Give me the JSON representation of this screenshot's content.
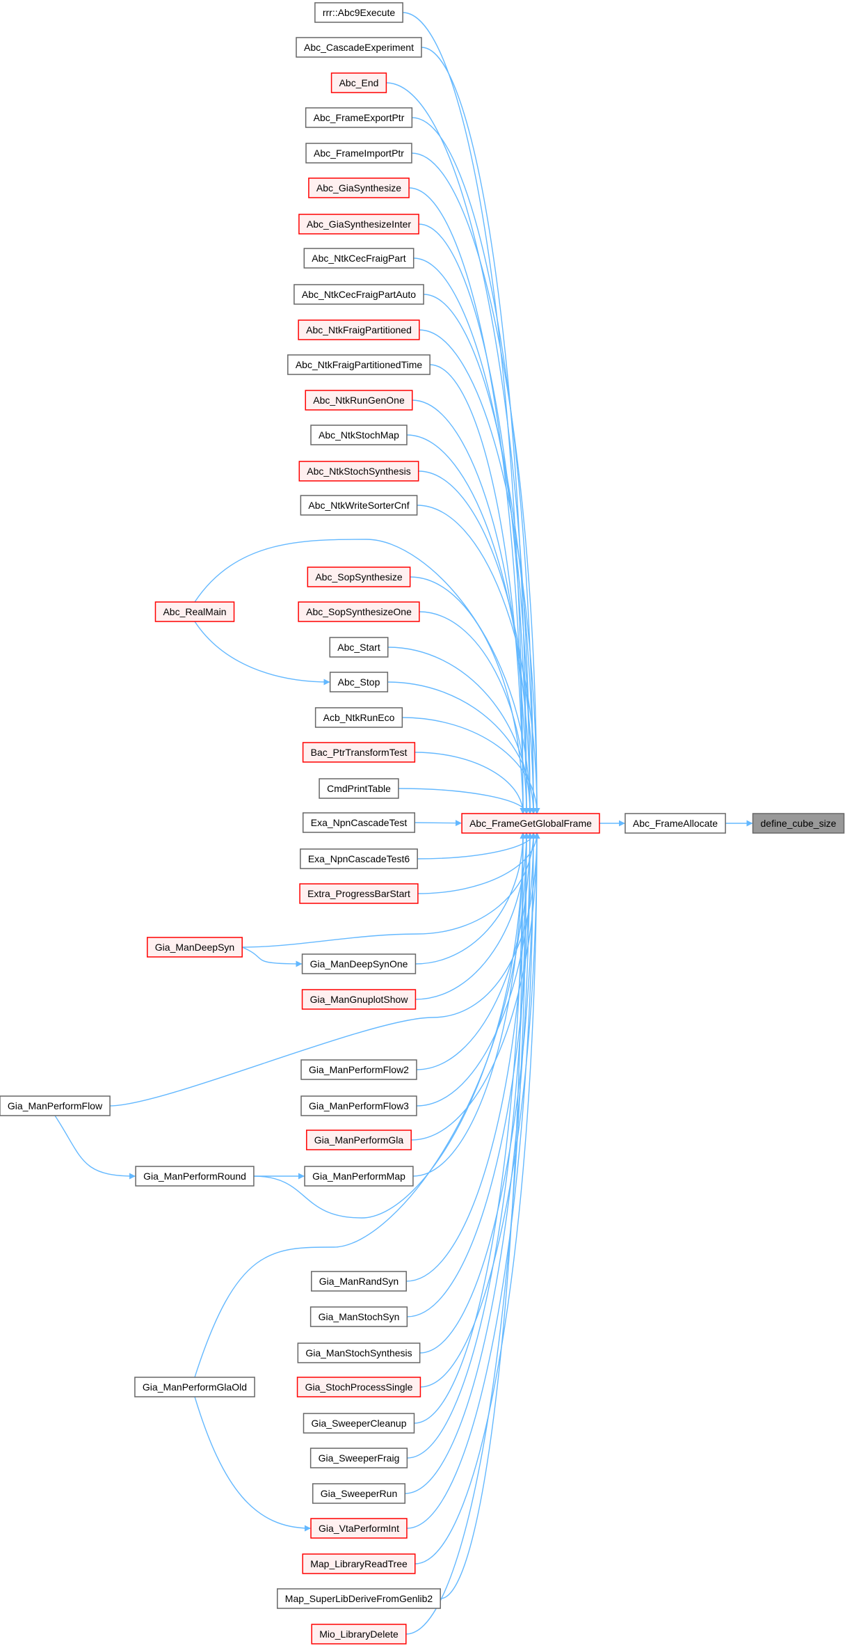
{
  "graph": {
    "colors": {
      "edge": "#63b8ff",
      "normal_border": "#666666",
      "normal_fill": "#ffffff",
      "highlight_border": "#ff0000",
      "highlight_fill": "#fff0f0",
      "current_fill": "#999999",
      "current_border": "#666666"
    },
    "nodes": [
      {
        "id": "n0",
        "label": "rrr::Abc9Execute",
        "style": "normal"
      },
      {
        "id": "n1",
        "label": "Abc_CascadeExperiment",
        "style": "normal"
      },
      {
        "id": "n2",
        "label": "Abc_End",
        "style": "highlight"
      },
      {
        "id": "n3",
        "label": "Abc_FrameExportPtr",
        "style": "normal"
      },
      {
        "id": "n4",
        "label": "Abc_FrameImportPtr",
        "style": "normal"
      },
      {
        "id": "n5",
        "label": "Abc_GiaSynthesize",
        "style": "highlight"
      },
      {
        "id": "n6",
        "label": "Abc_GiaSynthesizeInter",
        "style": "highlight"
      },
      {
        "id": "n7",
        "label": "Abc_NtkCecFraigPart",
        "style": "normal"
      },
      {
        "id": "n8",
        "label": "Abc_NtkCecFraigPartAuto",
        "style": "normal"
      },
      {
        "id": "n9",
        "label": "Abc_NtkFraigPartitioned",
        "style": "highlight"
      },
      {
        "id": "n10",
        "label": "Abc_NtkFraigPartitionedTime",
        "style": "normal"
      },
      {
        "id": "n11",
        "label": "Abc_NtkRunGenOne",
        "style": "highlight"
      },
      {
        "id": "n12",
        "label": "Abc_NtkStochMap",
        "style": "normal"
      },
      {
        "id": "n13",
        "label": "Abc_NtkStochSynthesis",
        "style": "highlight"
      },
      {
        "id": "n14",
        "label": "Abc_NtkWriteSorterCnf",
        "style": "normal"
      },
      {
        "id": "n15",
        "label": "Abc_SopSynthesize",
        "style": "highlight"
      },
      {
        "id": "n16",
        "label": "Abc_SopSynthesizeOne",
        "style": "highlight"
      },
      {
        "id": "n17",
        "label": "Abc_Start",
        "style": "normal"
      },
      {
        "id": "n18",
        "label": "Abc_Stop",
        "style": "normal"
      },
      {
        "id": "n19",
        "label": "Acb_NtkRunEco",
        "style": "normal"
      },
      {
        "id": "n20",
        "label": "Bac_PtrTransformTest",
        "style": "highlight"
      },
      {
        "id": "n21",
        "label": "CmdPrintTable",
        "style": "normal"
      },
      {
        "id": "n22",
        "label": "Exa_NpnCascadeTest",
        "style": "normal"
      },
      {
        "id": "n23",
        "label": "Exa_NpnCascadeTest6",
        "style": "normal"
      },
      {
        "id": "n24",
        "label": "Extra_ProgressBarStart",
        "style": "highlight"
      },
      {
        "id": "n25",
        "label": "Gia_ManDeepSynOne",
        "style": "normal"
      },
      {
        "id": "n26",
        "label": "Gia_ManGnuplotShow",
        "style": "highlight"
      },
      {
        "id": "n27",
        "label": "Gia_ManPerformFlow2",
        "style": "normal"
      },
      {
        "id": "n28",
        "label": "Gia_ManPerformFlow3",
        "style": "normal"
      },
      {
        "id": "n29",
        "label": "Gia_ManPerformGla",
        "style": "highlight"
      },
      {
        "id": "n30",
        "label": "Gia_ManPerformMap",
        "style": "normal"
      },
      {
        "id": "n31",
        "label": "Gia_ManRandSyn",
        "style": "normal"
      },
      {
        "id": "n32",
        "label": "Gia_ManStochSyn",
        "style": "normal"
      },
      {
        "id": "n33",
        "label": "Gia_ManStochSynthesis",
        "style": "normal"
      },
      {
        "id": "n34",
        "label": "Gia_StochProcessSingle",
        "style": "highlight"
      },
      {
        "id": "n35",
        "label": "Gia_SweeperCleanup",
        "style": "normal"
      },
      {
        "id": "n36",
        "label": "Gia_SweeperFraig",
        "style": "normal"
      },
      {
        "id": "n37",
        "label": "Gia_SweeperRun",
        "style": "normal"
      },
      {
        "id": "n38",
        "label": "Gia_VtaPerformInt",
        "style": "highlight"
      },
      {
        "id": "n39",
        "label": "Map_LibraryReadTree",
        "style": "highlight"
      },
      {
        "id": "n40",
        "label": "Map_SuperLibDeriveFromGenlib2",
        "style": "normal"
      },
      {
        "id": "n41",
        "label": "Mio_LibraryDelete",
        "style": "highlight"
      },
      {
        "id": "l0",
        "label": "Abc_RealMain",
        "style": "highlight"
      },
      {
        "id": "l1",
        "label": "Gia_ManDeepSyn",
        "style": "highlight"
      },
      {
        "id": "l2",
        "label": "Gia_ManPerformFlow",
        "style": "normal"
      },
      {
        "id": "l3",
        "label": "Gia_ManPerformRound",
        "style": "normal"
      },
      {
        "id": "l4",
        "label": "Gia_ManPerformGlaOld",
        "style": "normal"
      },
      {
        "id": "main",
        "label": "Abc_FrameGetGlobalFrame",
        "style": "highlight"
      },
      {
        "id": "alloc",
        "label": "Abc_FrameAllocate",
        "style": "normal"
      },
      {
        "id": "target",
        "label": "define_cube_size",
        "style": "current"
      }
    ],
    "edges": [
      [
        "l0",
        "n18"
      ],
      [
        "l0",
        "main"
      ],
      [
        "l1",
        "n25"
      ],
      [
        "l1",
        "main"
      ],
      [
        "l2",
        "l3"
      ],
      [
        "l2",
        "main"
      ],
      [
        "l3",
        "n30"
      ],
      [
        "l3",
        "main"
      ],
      [
        "l4",
        "n38"
      ],
      [
        "l4",
        "main"
      ],
      [
        "main",
        "alloc"
      ],
      [
        "alloc",
        "target"
      ]
    ]
  }
}
